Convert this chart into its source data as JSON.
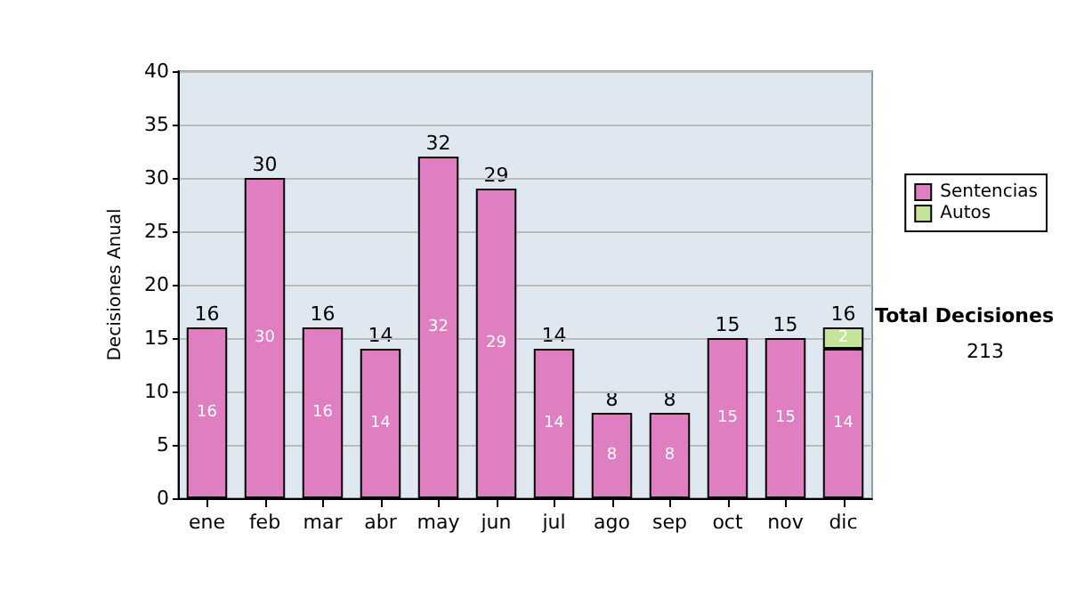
{
  "chart_data": {
    "type": "bar",
    "stacked": true,
    "ylabel": "Decisiones Anual",
    "categories": [
      "ene",
      "feb",
      "mar",
      "abr",
      "may",
      "jun",
      "jul",
      "ago",
      "sep",
      "oct",
      "nov",
      "dic"
    ],
    "series": [
      {
        "name": "Sentencias",
        "color": "#df7fc1",
        "values": [
          16,
          30,
          16,
          14,
          32,
          29,
          14,
          8,
          8,
          15,
          15,
          14
        ]
      },
      {
        "name": "Autos",
        "color": "#c6e39a",
        "values": [
          null,
          null,
          null,
          null,
          null,
          null,
          null,
          null,
          null,
          null,
          null,
          2
        ]
      }
    ],
    "totals": [
      "16",
      "30",
      "16",
      "14",
      "32",
      "29",
      "14",
      "8",
      "8",
      "15",
      "15",
      "16"
    ],
    "data_labels": true,
    "ylim": [
      0,
      40
    ],
    "yticks": [
      0,
      5,
      10,
      15,
      20,
      25,
      30,
      35,
      40
    ],
    "grid": "y",
    "legend": "right",
    "annotations": [
      "Total Decisiones",
      "213"
    ]
  }
}
